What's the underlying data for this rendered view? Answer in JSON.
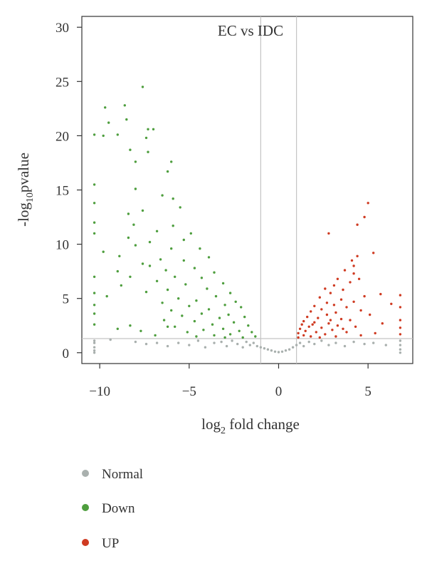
{
  "chart_data": {
    "type": "scatter",
    "title": "EC vs IDC",
    "xlabel": {
      "base": "log",
      "sub": "2",
      "rest": " fold change"
    },
    "ylabel": {
      "pre": "-log",
      "sub": "10",
      "rest": "pvalue"
    },
    "xlim": [
      -11,
      7.5
    ],
    "ylim": [
      -1,
      31
    ],
    "x_ticks": [
      -10,
      -5,
      0,
      5
    ],
    "x_tick_labels": [
      "−10",
      "−5",
      "0",
      "5"
    ],
    "y_ticks": [
      0,
      5,
      10,
      15,
      20,
      25,
      30
    ],
    "y_tick_labels": [
      "0",
      "5",
      "10",
      "15",
      "20",
      "25",
      "30"
    ],
    "thresholds": {
      "log2fc": [
        -1,
        1
      ],
      "neg_log10_p": 1.3
    },
    "grid": false,
    "legend_position": "bottom-left",
    "colors": {
      "Normal": "#a9b0ae",
      "Down": "#4e9e3e",
      "UP": "#cf3b22",
      "threshold_line": "#c4c4c4",
      "axis": "#333333"
    },
    "series": [
      {
        "name": "Normal",
        "color": "#a9b0ae",
        "points": [
          [
            -10.3,
            0.0
          ],
          [
            -10.3,
            0.2
          ],
          [
            -10.3,
            0.5
          ],
          [
            -10.3,
            0.9
          ],
          [
            -10.3,
            1.1
          ],
          [
            -9.4,
            1.2
          ],
          [
            -8.0,
            1.0
          ],
          [
            -7.4,
            0.8
          ],
          [
            -6.8,
            0.9
          ],
          [
            -6.2,
            0.6
          ],
          [
            -5.6,
            0.9
          ],
          [
            -5.0,
            0.7
          ],
          [
            -4.5,
            1.1
          ],
          [
            -4.1,
            0.5
          ],
          [
            -3.6,
            0.9
          ],
          [
            -3.2,
            1.0
          ],
          [
            -2.9,
            0.6
          ],
          [
            -2.6,
            1.1
          ],
          [
            -2.3,
            0.8
          ],
          [
            -2.0,
            0.5
          ],
          [
            -1.8,
            1.0
          ],
          [
            -1.6,
            0.7
          ],
          [
            -1.4,
            0.9
          ],
          [
            -1.2,
            0.6
          ],
          [
            -1.0,
            0.5
          ],
          [
            -0.8,
            0.4
          ],
          [
            -0.6,
            0.3
          ],
          [
            -0.4,
            0.2
          ],
          [
            -0.2,
            0.1
          ],
          [
            0.0,
            0.05
          ],
          [
            0.2,
            0.1
          ],
          [
            0.4,
            0.2
          ],
          [
            0.6,
            0.3
          ],
          [
            0.8,
            0.5
          ],
          [
            1.0,
            0.7
          ],
          [
            1.2,
            0.9
          ],
          [
            1.4,
            0.6
          ],
          [
            1.7,
            1.0
          ],
          [
            2.0,
            0.8
          ],
          [
            2.4,
            1.1
          ],
          [
            2.8,
            0.7
          ],
          [
            3.2,
            0.9
          ],
          [
            3.7,
            0.6
          ],
          [
            4.2,
            1.0
          ],
          [
            4.8,
            0.8
          ],
          [
            5.3,
            0.9
          ],
          [
            6.0,
            0.7
          ],
          [
            6.8,
            0.0
          ],
          [
            6.8,
            0.3
          ],
          [
            6.8,
            0.7
          ],
          [
            6.8,
            1.1
          ]
        ]
      },
      {
        "name": "Down",
        "color": "#4e9e3e",
        "points": [
          [
            -7.6,
            24.5
          ],
          [
            -8.6,
            22.8
          ],
          [
            -9.7,
            22.6
          ],
          [
            -9.5,
            21.2
          ],
          [
            -8.5,
            21.5
          ],
          [
            -7.3,
            20.6
          ],
          [
            -7.0,
            20.6
          ],
          [
            -9.0,
            20.1
          ],
          [
            -9.8,
            20.0
          ],
          [
            -10.3,
            20.1
          ],
          [
            -7.4,
            19.8
          ],
          [
            -8.3,
            18.7
          ],
          [
            -7.3,
            18.5
          ],
          [
            -8.0,
            17.6
          ],
          [
            -6.0,
            17.6
          ],
          [
            -6.2,
            16.7
          ],
          [
            -8.0,
            15.1
          ],
          [
            -10.3,
            15.5
          ],
          [
            -6.5,
            14.5
          ],
          [
            -5.9,
            14.2
          ],
          [
            -10.3,
            13.8
          ],
          [
            -7.6,
            13.1
          ],
          [
            -5.5,
            13.4
          ],
          [
            -8.4,
            12.8
          ],
          [
            -10.3,
            12.0
          ],
          [
            -5.9,
            11.7
          ],
          [
            -8.1,
            11.8
          ],
          [
            -6.8,
            11.2
          ],
          [
            -4.9,
            11.0
          ],
          [
            -10.3,
            11.0
          ],
          [
            -8.4,
            10.6
          ],
          [
            -5.3,
            10.4
          ],
          [
            -7.2,
            10.2
          ],
          [
            -8.0,
            9.9
          ],
          [
            -9.8,
            9.3
          ],
          [
            -6.0,
            9.6
          ],
          [
            -4.4,
            9.6
          ],
          [
            -8.9,
            8.9
          ],
          [
            -6.6,
            8.6
          ],
          [
            -5.3,
            8.5
          ],
          [
            -3.9,
            8.8
          ],
          [
            -7.6,
            8.2
          ],
          [
            -7.2,
            8.0
          ],
          [
            -4.7,
            7.8
          ],
          [
            -6.3,
            7.6
          ],
          [
            -9.0,
            7.5
          ],
          [
            -3.6,
            7.4
          ],
          [
            -8.3,
            7.0
          ],
          [
            -5.8,
            7.0
          ],
          [
            -10.3,
            7.0
          ],
          [
            -4.3,
            6.9
          ],
          [
            -6.8,
            6.6
          ],
          [
            -3.1,
            6.4
          ],
          [
            -5.2,
            6.3
          ],
          [
            -8.8,
            6.2
          ],
          [
            -4.0,
            5.9
          ],
          [
            -6.2,
            5.8
          ],
          [
            -2.7,
            5.5
          ],
          [
            -7.4,
            5.6
          ],
          [
            -10.3,
            5.5
          ],
          [
            -3.5,
            5.2
          ],
          [
            -5.6,
            5.0
          ],
          [
            -4.6,
            4.8
          ],
          [
            -9.6,
            5.2
          ],
          [
            -2.4,
            4.7
          ],
          [
            -6.5,
            4.6
          ],
          [
            -3.0,
            4.4
          ],
          [
            -5.0,
            4.3
          ],
          [
            -3.9,
            4.0
          ],
          [
            -2.1,
            4.2
          ],
          [
            -6.0,
            3.9
          ],
          [
            -4.3,
            3.6
          ],
          [
            -2.8,
            3.5
          ],
          [
            -10.3,
            3.6
          ],
          [
            -5.4,
            3.4
          ],
          [
            -3.3,
            3.2
          ],
          [
            -1.9,
            3.3
          ],
          [
            -6.4,
            3.0
          ],
          [
            -4.7,
            2.9
          ],
          [
            -2.5,
            2.8
          ],
          [
            -3.7,
            2.6
          ],
          [
            -8.3,
            2.5
          ],
          [
            -5.8,
            2.4
          ],
          [
            -1.7,
            2.5
          ],
          [
            -3.1,
            2.2
          ],
          [
            -4.2,
            2.1
          ],
          [
            -2.2,
            2.0
          ],
          [
            -9.0,
            2.2
          ],
          [
            -5.1,
            1.9
          ],
          [
            -1.5,
            1.9
          ],
          [
            -2.7,
            1.7
          ],
          [
            -3.6,
            1.6
          ],
          [
            -6.9,
            1.6
          ],
          [
            -1.3,
            1.5
          ],
          [
            -4.6,
            1.5
          ],
          [
            -2.0,
            1.4
          ],
          [
            -10.3,
            2.6
          ],
          [
            -10.3,
            4.4
          ],
          [
            -7.7,
            2.0
          ],
          [
            -6.2,
            2.4
          ],
          [
            -3.0,
            1.4
          ]
        ]
      },
      {
        "name": "UP",
        "color": "#cf3b22",
        "points": [
          [
            5.0,
            13.8
          ],
          [
            4.8,
            12.5
          ],
          [
            4.4,
            11.8
          ],
          [
            2.8,
            11.0
          ],
          [
            5.3,
            9.2
          ],
          [
            4.4,
            8.9
          ],
          [
            4.1,
            8.5
          ],
          [
            4.2,
            8.0
          ],
          [
            3.7,
            7.6
          ],
          [
            4.2,
            7.3
          ],
          [
            4.5,
            6.8
          ],
          [
            3.3,
            6.8
          ],
          [
            4.0,
            6.5
          ],
          [
            3.1,
            6.2
          ],
          [
            2.6,
            5.9
          ],
          [
            3.6,
            5.8
          ],
          [
            2.9,
            5.5
          ],
          [
            5.7,
            5.4
          ],
          [
            6.8,
            5.3
          ],
          [
            4.8,
            5.2
          ],
          [
            2.3,
            5.1
          ],
          [
            3.5,
            4.9
          ],
          [
            4.2,
            4.7
          ],
          [
            2.7,
            4.6
          ],
          [
            3.1,
            4.4
          ],
          [
            2.0,
            4.3
          ],
          [
            6.3,
            4.5
          ],
          [
            3.8,
            4.2
          ],
          [
            2.4,
            4.0
          ],
          [
            4.6,
            3.9
          ],
          [
            1.8,
            3.8
          ],
          [
            3.2,
            3.7
          ],
          [
            2.7,
            3.5
          ],
          [
            5.1,
            3.5
          ],
          [
            1.6,
            3.3
          ],
          [
            2.2,
            3.2
          ],
          [
            3.5,
            3.1
          ],
          [
            4.0,
            3.0
          ],
          [
            1.4,
            2.9
          ],
          [
            6.8,
            3.0
          ],
          [
            2.0,
            2.8
          ],
          [
            2.8,
            2.7
          ],
          [
            5.8,
            2.7
          ],
          [
            1.3,
            2.6
          ],
          [
            3.3,
            2.5
          ],
          [
            1.7,
            2.4
          ],
          [
            2.4,
            2.3
          ],
          [
            4.3,
            2.4
          ],
          [
            1.2,
            2.2
          ],
          [
            3.0,
            2.1
          ],
          [
            1.5,
            2.0
          ],
          [
            2.1,
            1.9
          ],
          [
            3.8,
            1.9
          ],
          [
            1.1,
            1.8
          ],
          [
            2.6,
            1.7
          ],
          [
            6.8,
            1.7
          ],
          [
            1.4,
            1.6
          ],
          [
            1.8,
            1.5
          ],
          [
            3.2,
            1.5
          ],
          [
            1.1,
            1.4
          ],
          [
            2.3,
            1.4
          ],
          [
            4.6,
            1.6
          ],
          [
            5.4,
            1.8
          ],
          [
            6.8,
            2.3
          ],
          [
            6.8,
            4.2
          ],
          [
            3.6,
            2.2
          ],
          [
            2.9,
            3.0
          ],
          [
            1.9,
            2.6
          ]
        ]
      }
    ]
  },
  "legend": [
    {
      "label": "Normal",
      "color": "#a9b0ae"
    },
    {
      "label": "Down",
      "color": "#4e9e3e"
    },
    {
      "label": "UP",
      "color": "#cf3b22"
    }
  ]
}
